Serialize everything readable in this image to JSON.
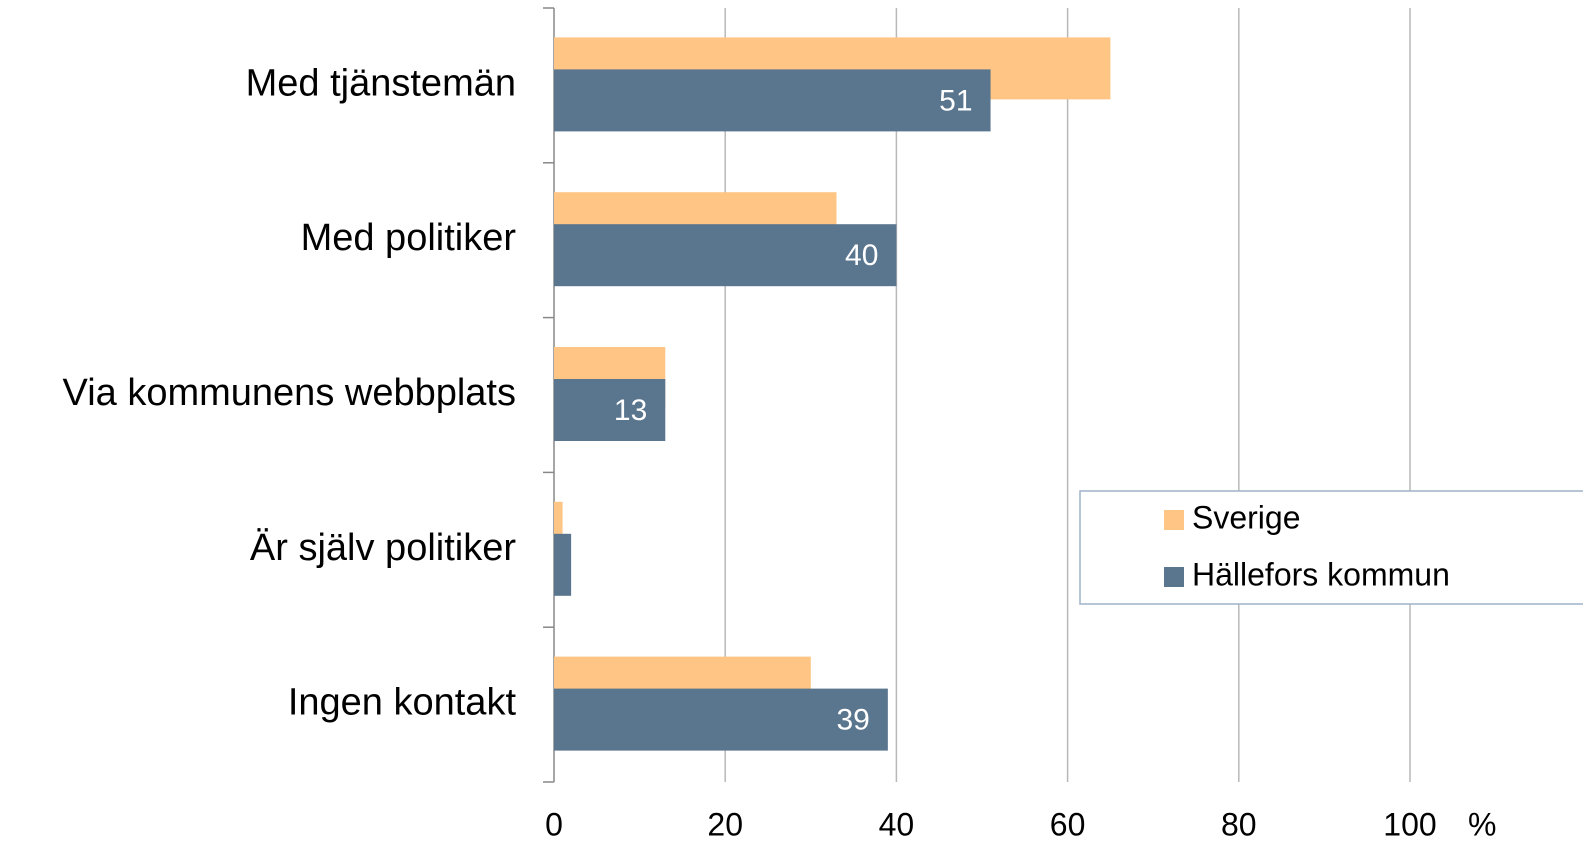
{
  "chart_data": {
    "type": "barh",
    "categories": [
      "Med tjänstemän",
      "Med politiker",
      "Via kommunens webbplats",
      "Är själv politiker",
      "Ingen kontakt"
    ],
    "series": [
      {
        "name": "Sverige",
        "color": "#fec584",
        "values": [
          65,
          33,
          13,
          1,
          30
        ]
      },
      {
        "name": "Hällefors kommun",
        "color": "#5a758e",
        "values": [
          51,
          40,
          13,
          2,
          39
        ],
        "value_labels": [
          "51",
          "40",
          "13",
          null,
          "39"
        ]
      }
    ],
    "x_label": "%",
    "xlim": [
      0,
      100
    ],
    "xticks": [
      0,
      20,
      40,
      60,
      80,
      100
    ],
    "grid": true,
    "legend": "right"
  }
}
